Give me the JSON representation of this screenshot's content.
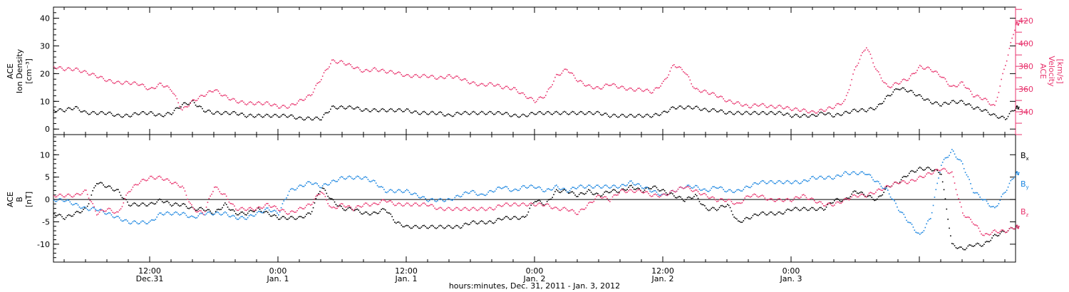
{
  "chart_data": [
    {
      "type": "scatter",
      "panel": "top",
      "ylabel_lines": [
        "ACE",
        "Ion Density",
        "[cm⁻³]"
      ],
      "y2label_lines": [
        "ACE",
        "Velocity",
        "[km/s]"
      ],
      "ylim": [
        -2,
        44
      ],
      "y2lim": [
        320,
        432
      ],
      "yticks": [
        0,
        10,
        20,
        30,
        40
      ],
      "y2ticks": [
        340,
        360,
        380,
        400,
        420
      ],
      "colors": {
        "left": "#000000",
        "right": "#e8336d"
      },
      "series": [
        {
          "axis": "left",
          "color": "#000000",
          "x": [
            0,
            1,
            2,
            3,
            4,
            5,
            6,
            7,
            8,
            9,
            10,
            11,
            12,
            13,
            14,
            15,
            16,
            17,
            18,
            19,
            20,
            21,
            22,
            23,
            24,
            25,
            26,
            27,
            28,
            29,
            30,
            31,
            32,
            33,
            34,
            35,
            36,
            37,
            38,
            39,
            40,
            41,
            42,
            43,
            44,
            45,
            46,
            47,
            48,
            49,
            50,
            51,
            52,
            53,
            54,
            55,
            56,
            57,
            58,
            59,
            60,
            61,
            62,
            63,
            64,
            65,
            66,
            67,
            68,
            69,
            70,
            71,
            72,
            73,
            74,
            75,
            76,
            77,
            78,
            79,
            80,
            81,
            82,
            83,
            84,
            85,
            86,
            87,
            88,
            89,
            90
          ],
          "values": [
            7,
            7,
            8,
            6,
            6,
            6,
            5,
            5,
            6,
            6,
            5,
            6,
            9,
            10,
            7,
            6,
            6,
            6,
            5,
            5,
            5,
            5,
            5,
            4,
            4,
            4,
            8,
            8,
            8,
            7,
            7,
            7,
            7,
            7,
            6,
            6,
            6,
            5,
            6,
            6,
            6,
            6,
            6,
            5,
            5,
            6,
            6,
            6,
            6,
            6,
            6,
            6,
            5,
            5,
            5,
            5,
            5,
            6,
            8,
            8,
            8,
            7,
            7,
            6,
            6,
            6,
            6,
            6,
            6,
            5,
            5,
            5,
            6,
            5,
            6,
            7,
            7,
            8,
            12,
            15,
            14,
            12,
            10,
            9,
            10,
            10,
            8,
            7,
            5,
            4,
            8
          ]
        },
        {
          "axis": "right",
          "color": "#e8336d",
          "x": [
            0,
            1,
            2,
            3,
            4,
            5,
            6,
            7,
            8,
            9,
            10,
            11,
            12,
            13,
            14,
            15,
            16,
            17,
            18,
            19,
            20,
            21,
            22,
            23,
            24,
            25,
            26,
            27,
            28,
            29,
            30,
            31,
            32,
            33,
            34,
            35,
            36,
            37,
            38,
            39,
            40,
            41,
            42,
            43,
            44,
            45,
            46,
            47,
            48,
            49,
            50,
            51,
            52,
            53,
            54,
            55,
            56,
            57,
            58,
            59,
            60,
            61,
            62,
            63,
            64,
            65,
            66,
            67,
            68,
            69,
            70,
            71,
            72,
            73,
            74,
            75,
            76,
            77,
            78,
            79,
            80,
            81,
            82,
            83,
            84,
            85,
            86,
            87,
            88,
            89,
            90
          ],
          "values": [
            380,
            378,
            378,
            375,
            372,
            368,
            366,
            366,
            365,
            360,
            365,
            360,
            342,
            350,
            355,
            360,
            354,
            350,
            348,
            348,
            348,
            345,
            345,
            350,
            355,
            370,
            385,
            384,
            380,
            376,
            378,
            376,
            375,
            372,
            372,
            372,
            370,
            372,
            370,
            366,
            364,
            365,
            362,
            361,
            355,
            350,
            355,
            372,
            378,
            368,
            363,
            361,
            365,
            362,
            360,
            360,
            358,
            366,
            382,
            376,
            360,
            358,
            355,
            350,
            348,
            345,
            347,
            345,
            345,
            343,
            342,
            340,
            342,
            345,
            350,
            380,
            398,
            376,
            362,
            366,
            370,
            380,
            378,
            372,
            362,
            366,
            355,
            352,
            345,
            382,
            418
          ]
        }
      ]
    },
    {
      "type": "scatter",
      "panel": "bottom",
      "ylabel_lines": [
        "ACE",
        "B",
        "[nT]"
      ],
      "ylim": [
        -14,
        14.5
      ],
      "yticks": [
        -10,
        -5,
        0,
        5,
        10
      ],
      "zero_line": true,
      "legend": "right",
      "series": [
        {
          "name": "Bx",
          "color": "#000000",
          "x": [
            0,
            1,
            2,
            3,
            4,
            5,
            6,
            7,
            8,
            9,
            10,
            11,
            12,
            13,
            14,
            15,
            16,
            17,
            18,
            19,
            20,
            21,
            22,
            23,
            24,
            25,
            26,
            27,
            28,
            29,
            30,
            31,
            32,
            33,
            34,
            35,
            36,
            37,
            38,
            39,
            40,
            41,
            42,
            43,
            44,
            45,
            46,
            47,
            48,
            49,
            50,
            51,
            52,
            53,
            54,
            55,
            56,
            57,
            58,
            59,
            60,
            61,
            62,
            63,
            64,
            65,
            66,
            67,
            68,
            69,
            70,
            71,
            72,
            73,
            74,
            75,
            76,
            77,
            78,
            79,
            80,
            81,
            82,
            83,
            84,
            85,
            86,
            87,
            88,
            89,
            90
          ],
          "values": [
            -3,
            -4,
            -3,
            -2,
            4,
            3,
            2,
            -1,
            -1,
            -1,
            0,
            -1,
            -1,
            -2,
            -2,
            -3,
            -1,
            -3,
            -3,
            -2,
            -3,
            -4,
            -4,
            -4,
            -3,
            3,
            0,
            -2,
            -2,
            -3,
            -3,
            -2,
            -5,
            -6,
            -6,
            -6,
            -6,
            -6,
            -6,
            -5,
            -5,
            -5,
            -4,
            -4,
            -4,
            0,
            -1,
            2,
            2,
            1,
            2,
            1,
            2,
            2,
            3,
            2,
            3,
            2,
            1,
            0,
            1,
            -2,
            -2,
            -1,
            -5,
            -4,
            -3,
            -3,
            -3,
            -2,
            -2,
            -2,
            -2,
            0,
            0,
            2,
            1,
            0,
            3,
            4,
            6,
            7,
            7,
            6,
            -10,
            -11,
            -10,
            -10,
            -8,
            -7,
            -6
          ]
        },
        {
          "name": "By",
          "color": "#1a85e0",
          "x": [
            0,
            1,
            2,
            3,
            4,
            5,
            6,
            7,
            8,
            9,
            10,
            11,
            12,
            13,
            14,
            15,
            16,
            17,
            18,
            19,
            20,
            21,
            22,
            23,
            24,
            25,
            26,
            27,
            28,
            29,
            30,
            31,
            32,
            33,
            34,
            35,
            36,
            37,
            38,
            39,
            40,
            41,
            42,
            43,
            44,
            45,
            46,
            47,
            48,
            49,
            50,
            51,
            52,
            53,
            54,
            55,
            56,
            57,
            58,
            59,
            60,
            61,
            62,
            63,
            64,
            65,
            66,
            67,
            68,
            69,
            70,
            71,
            72,
            73,
            74,
            75,
            76,
            77,
            78,
            79,
            80,
            81,
            82,
            83,
            84,
            85,
            86,
            87,
            88,
            89,
            90
          ],
          "values": [
            0,
            0,
            -1,
            -2,
            -2,
            -3,
            -4,
            -5,
            -5,
            -5,
            -3,
            -3,
            -3,
            -4,
            -3,
            -3,
            -3,
            -4,
            -4,
            -3,
            -2,
            -3,
            2,
            3,
            4,
            3,
            4,
            5,
            5,
            5,
            4,
            2,
            2,
            2,
            1,
            0,
            0,
            0,
            1,
            2,
            1,
            2,
            3,
            2,
            3,
            3,
            2,
            3,
            2,
            3,
            3,
            3,
            3,
            3,
            4,
            3,
            2,
            1,
            2,
            3,
            3,
            2,
            3,
            2,
            2,
            3,
            4,
            4,
            4,
            4,
            4,
            5,
            5,
            5,
            6,
            6,
            6,
            4,
            2,
            -2,
            -5,
            -8,
            -4,
            8,
            11,
            8,
            2,
            0,
            -2,
            2,
            6
          ]
        },
        {
          "name": "Bz",
          "color": "#e8336d",
          "x": [
            0,
            1,
            2,
            3,
            4,
            5,
            6,
            7,
            8,
            9,
            10,
            11,
            12,
            13,
            14,
            15,
            16,
            17,
            18,
            19,
            20,
            21,
            22,
            23,
            24,
            25,
            26,
            27,
            28,
            29,
            30,
            31,
            32,
            33,
            34,
            35,
            36,
            37,
            38,
            39,
            40,
            41,
            42,
            43,
            44,
            45,
            46,
            47,
            48,
            49,
            50,
            51,
            52,
            53,
            54,
            55,
            56,
            57,
            58,
            59,
            60,
            61,
            62,
            63,
            64,
            65,
            66,
            67,
            68,
            69,
            70,
            71,
            72,
            73,
            74,
            75,
            76,
            77,
            78,
            79,
            80,
            81,
            82,
            83,
            84,
            85,
            86,
            87,
            88,
            89,
            90
          ],
          "values": [
            1,
            1,
            1,
            2,
            -3,
            -2,
            -3,
            2,
            4,
            5,
            5,
            4,
            3,
            -2,
            -3,
            3,
            1,
            -2,
            -2,
            -2,
            -1,
            -2,
            -3,
            -2,
            -1,
            2,
            -2,
            -1,
            -2,
            -1,
            -1,
            0,
            -1,
            -1,
            -1,
            -1,
            -2,
            -2,
            -2,
            -2,
            -2,
            -2,
            -1,
            -1,
            -1,
            -1,
            -1,
            -2,
            -2,
            -3,
            -1,
            1,
            0,
            2,
            2,
            2,
            1,
            1,
            2,
            3,
            2,
            1,
            0,
            0,
            -1,
            1,
            1,
            0,
            0,
            0,
            1,
            0,
            -1,
            -1,
            0,
            1,
            1,
            2,
            3,
            4,
            4,
            5,
            6,
            7,
            6,
            -3,
            -5,
            -8,
            -7,
            -7,
            -6
          ]
        }
      ]
    }
  ],
  "xaxis": {
    "xlim": [
      0,
      90
    ],
    "ticks": [
      {
        "x": 9,
        "time": "12:00",
        "date": "Dec.31"
      },
      {
        "x": 21,
        "time": "0:00",
        "date": "Jan. 1"
      },
      {
        "x": 33,
        "time": "12:00",
        "date": "Jan. 1"
      },
      {
        "x": 45,
        "time": "0:00",
        "date": "Jan. 2"
      },
      {
        "x": 57,
        "time": "12:00",
        "date": "Jan. 2"
      },
      {
        "x": 69,
        "time": "0:00",
        "date": "Jan. 3"
      }
    ],
    "label": "hours:minutes, Dec. 31, 2011 - Jan.  3, 2012"
  },
  "legend_labels": [
    "Bx",
    "By",
    "Bz"
  ]
}
